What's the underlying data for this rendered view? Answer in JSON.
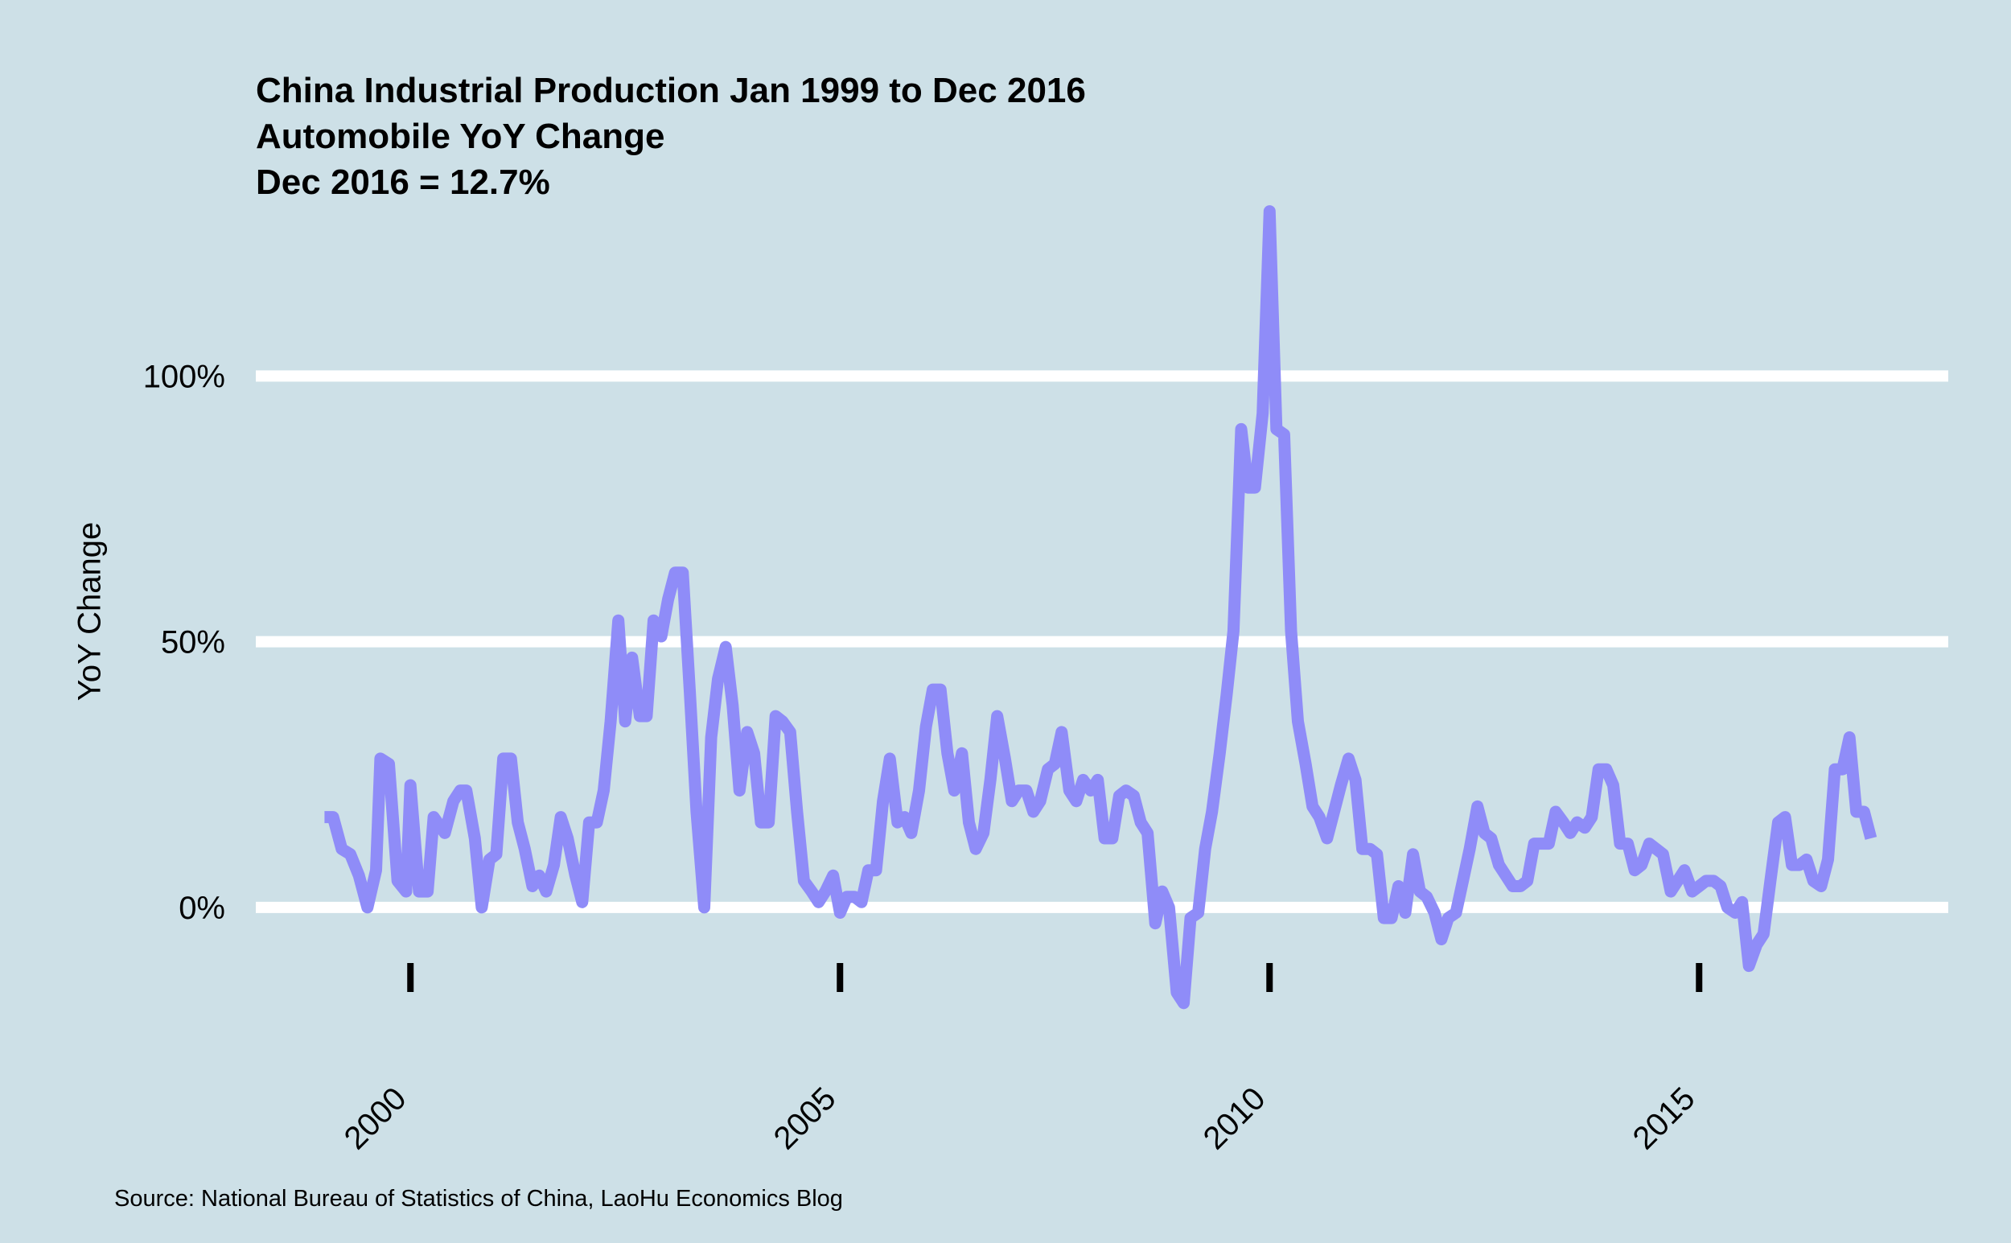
{
  "chart_data": {
    "type": "line",
    "title_lines": [
      "China Industrial Production Jan 1999 to Dec 2016",
      "Automobile YoY Change",
      "Dec 2016 = 12.7%"
    ],
    "ylabel": "YoY Change",
    "xlabel": "",
    "source": "Source: National Bureau of Statistics of China, LaoHu Economics Blog",
    "ylim": [
      -20,
      132
    ],
    "xlim": [
      1998.2,
      2017.9
    ],
    "y_ticks": [
      0,
      50,
      100
    ],
    "y_tick_labels": [
      "0%",
      "50%",
      "100%"
    ],
    "x_ticks": [
      2000,
      2005,
      2010,
      2015
    ],
    "x_tick_labels": [
      "2000",
      "2005",
      "2010",
      "2015"
    ],
    "grid": "horizontal",
    "line_color": "#8f8cf8",
    "background_color": "#cde0e7",
    "series": [
      {
        "name": "Automobile YoY Change",
        "points": [
          [
            1999.0,
            17
          ],
          [
            1999.1,
            17
          ],
          [
            1999.2,
            11
          ],
          [
            1999.3,
            10
          ],
          [
            1999.4,
            6
          ],
          [
            1999.5,
            0
          ],
          [
            1999.6,
            7
          ],
          [
            1999.65,
            28
          ],
          [
            1999.75,
            27
          ],
          [
            1999.85,
            5
          ],
          [
            1999.95,
            3
          ],
          [
            2000.0,
            23
          ],
          [
            2000.1,
            3
          ],
          [
            2000.2,
            3
          ],
          [
            2000.27,
            17
          ],
          [
            2000.4,
            14
          ],
          [
            2000.5,
            20
          ],
          [
            2000.58,
            22
          ],
          [
            2000.65,
            22
          ],
          [
            2000.75,
            13
          ],
          [
            2000.83,
            0
          ],
          [
            2000.92,
            9
          ],
          [
            2001.0,
            10
          ],
          [
            2001.08,
            28
          ],
          [
            2001.17,
            28
          ],
          [
            2001.25,
            16
          ],
          [
            2001.33,
            11
          ],
          [
            2001.42,
            4
          ],
          [
            2001.5,
            6
          ],
          [
            2001.58,
            3
          ],
          [
            2001.67,
            8
          ],
          [
            2001.75,
            17
          ],
          [
            2001.83,
            13
          ],
          [
            2001.92,
            6
          ],
          [
            2002.0,
            1
          ],
          [
            2002.08,
            16
          ],
          [
            2002.17,
            16
          ],
          [
            2002.25,
            22
          ],
          [
            2002.33,
            35
          ],
          [
            2002.42,
            54
          ],
          [
            2002.5,
            35
          ],
          [
            2002.58,
            47
          ],
          [
            2002.67,
            36
          ],
          [
            2002.75,
            36
          ],
          [
            2002.83,
            54
          ],
          [
            2002.92,
            51
          ],
          [
            2003.0,
            58
          ],
          [
            2003.08,
            63
          ],
          [
            2003.17,
            63
          ],
          [
            2003.25,
            41
          ],
          [
            2003.33,
            18
          ],
          [
            2003.42,
            0
          ],
          [
            2003.5,
            32
          ],
          [
            2003.58,
            43
          ],
          [
            2003.67,
            49
          ],
          [
            2003.75,
            38
          ],
          [
            2003.83,
            22
          ],
          [
            2003.92,
            33
          ],
          [
            2004.0,
            29
          ],
          [
            2004.08,
            16
          ],
          [
            2004.17,
            16
          ],
          [
            2004.25,
            36
          ],
          [
            2004.33,
            35
          ],
          [
            2004.42,
            33
          ],
          [
            2004.5,
            18
          ],
          [
            2004.58,
            5
          ],
          [
            2004.67,
            3
          ],
          [
            2004.75,
            1
          ],
          [
            2004.83,
            3
          ],
          [
            2004.92,
            6
          ],
          [
            2005.0,
            -1
          ],
          [
            2005.08,
            2
          ],
          [
            2005.17,
            2
          ],
          [
            2005.25,
            1
          ],
          [
            2005.33,
            7
          ],
          [
            2005.42,
            7
          ],
          [
            2005.5,
            20
          ],
          [
            2005.58,
            28
          ],
          [
            2005.67,
            16
          ],
          [
            2005.75,
            17
          ],
          [
            2005.83,
            14
          ],
          [
            2005.92,
            22
          ],
          [
            2006.0,
            34
          ],
          [
            2006.08,
            41
          ],
          [
            2006.17,
            41
          ],
          [
            2006.25,
            29
          ],
          [
            2006.33,
            22
          ],
          [
            2006.42,
            29
          ],
          [
            2006.5,
            16
          ],
          [
            2006.58,
            11
          ],
          [
            2006.67,
            14
          ],
          [
            2006.75,
            24
          ],
          [
            2006.83,
            36
          ],
          [
            2006.92,
            28
          ],
          [
            2007.0,
            20
          ],
          [
            2007.08,
            22
          ],
          [
            2007.17,
            22
          ],
          [
            2007.25,
            18
          ],
          [
            2007.33,
            20
          ],
          [
            2007.42,
            26
          ],
          [
            2007.5,
            27
          ],
          [
            2007.58,
            33
          ],
          [
            2007.67,
            22
          ],
          [
            2007.75,
            20
          ],
          [
            2007.83,
            24
          ],
          [
            2007.92,
            22
          ],
          [
            2008.0,
            24
          ],
          [
            2008.08,
            13
          ],
          [
            2008.17,
            13
          ],
          [
            2008.25,
            21
          ],
          [
            2008.33,
            22
          ],
          [
            2008.42,
            21
          ],
          [
            2008.5,
            16
          ],
          [
            2008.58,
            14
          ],
          [
            2008.67,
            -3
          ],
          [
            2008.75,
            3
          ],
          [
            2008.83,
            0
          ],
          [
            2008.92,
            -16
          ],
          [
            2009.0,
            -18
          ],
          [
            2009.08,
            -2
          ],
          [
            2009.17,
            -1
          ],
          [
            2009.25,
            11
          ],
          [
            2009.33,
            18
          ],
          [
            2009.42,
            29
          ],
          [
            2009.5,
            40
          ],
          [
            2009.58,
            52
          ],
          [
            2009.67,
            90
          ],
          [
            2009.75,
            79
          ],
          [
            2009.83,
            79
          ],
          [
            2009.92,
            93
          ],
          [
            2010.0,
            131
          ],
          [
            2010.08,
            90
          ],
          [
            2010.17,
            89
          ],
          [
            2010.25,
            52
          ],
          [
            2010.33,
            35
          ],
          [
            2010.42,
            27
          ],
          [
            2010.5,
            19
          ],
          [
            2010.58,
            17
          ],
          [
            2010.67,
            13
          ],
          [
            2010.75,
            18
          ],
          [
            2010.83,
            23
          ],
          [
            2010.92,
            28
          ],
          [
            2011.0,
            24
          ],
          [
            2011.08,
            11
          ],
          [
            2011.17,
            11
          ],
          [
            2011.25,
            10
          ],
          [
            2011.33,
            -2
          ],
          [
            2011.42,
            -2
          ],
          [
            2011.5,
            4
          ],
          [
            2011.58,
            -1
          ],
          [
            2011.67,
            10
          ],
          [
            2011.75,
            3
          ],
          [
            2011.83,
            2
          ],
          [
            2011.92,
            -1
          ],
          [
            2012.0,
            -6
          ],
          [
            2012.08,
            -2
          ],
          [
            2012.17,
            -1
          ],
          [
            2012.25,
            5
          ],
          [
            2012.33,
            11
          ],
          [
            2012.42,
            19
          ],
          [
            2012.5,
            14
          ],
          [
            2012.58,
            13
          ],
          [
            2012.67,
            8
          ],
          [
            2012.75,
            6
          ],
          [
            2012.83,
            4
          ],
          [
            2012.92,
            4
          ],
          [
            2013.0,
            5
          ],
          [
            2013.08,
            12
          ],
          [
            2013.17,
            12
          ],
          [
            2013.25,
            12
          ],
          [
            2013.33,
            18
          ],
          [
            2013.42,
            16
          ],
          [
            2013.5,
            14
          ],
          [
            2013.58,
            16
          ],
          [
            2013.67,
            15
          ],
          [
            2013.75,
            17
          ],
          [
            2013.83,
            26
          ],
          [
            2013.92,
            26
          ],
          [
            2014.0,
            23
          ],
          [
            2014.08,
            12
          ],
          [
            2014.17,
            12
          ],
          [
            2014.25,
            7
          ],
          [
            2014.33,
            8
          ],
          [
            2014.42,
            12
          ],
          [
            2014.5,
            11
          ],
          [
            2014.58,
            10
          ],
          [
            2014.67,
            3
          ],
          [
            2014.75,
            5
          ],
          [
            2014.83,
            7
          ],
          [
            2014.92,
            3
          ],
          [
            2015.0,
            4
          ],
          [
            2015.08,
            5
          ],
          [
            2015.17,
            5
          ],
          [
            2015.25,
            4
          ],
          [
            2015.33,
            0
          ],
          [
            2015.42,
            -1
          ],
          [
            2015.5,
            1
          ],
          [
            2015.58,
            -11
          ],
          [
            2015.67,
            -7
          ],
          [
            2015.75,
            -5
          ],
          [
            2015.83,
            5
          ],
          [
            2015.92,
            16
          ],
          [
            2016.0,
            17
          ],
          [
            2016.08,
            8
          ],
          [
            2016.17,
            8
          ],
          [
            2016.25,
            9
          ],
          [
            2016.33,
            5
          ],
          [
            2016.42,
            4
          ],
          [
            2016.5,
            9
          ],
          [
            2016.58,
            26
          ],
          [
            2016.67,
            26
          ],
          [
            2016.75,
            32
          ],
          [
            2016.83,
            18
          ],
          [
            2016.92,
            18
          ],
          [
            2017.0,
            13
          ]
        ]
      }
    ]
  }
}
